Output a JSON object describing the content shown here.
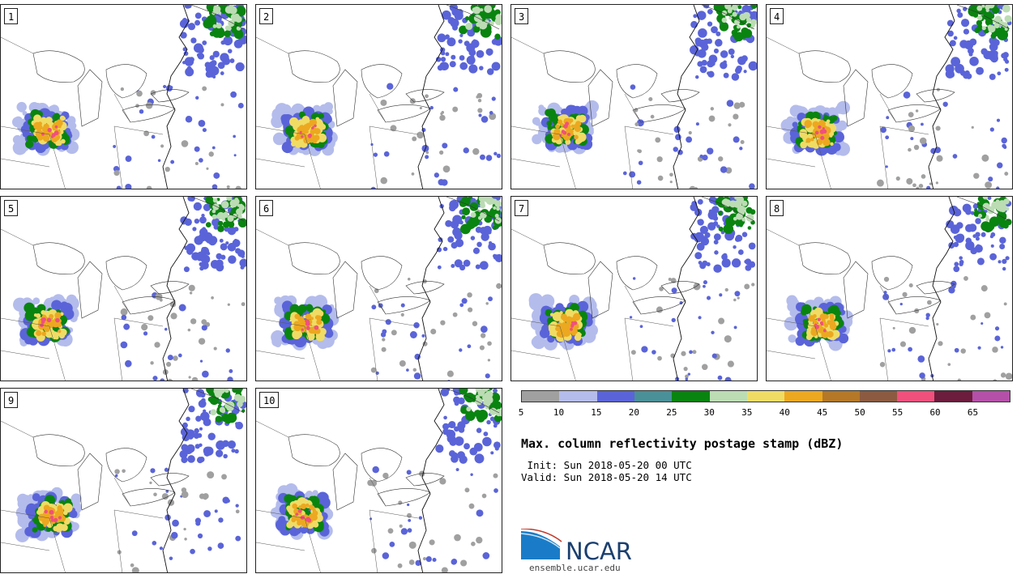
{
  "title": "Max. column reflectivity postage stamp (dBZ)",
  "init": " Init: Sun 2018-05-20 00 UTC",
  "valid": "Valid: Sun 2018-05-20 14 UTC",
  "logo": "NCAR",
  "url": "ensemble.ucar.edu",
  "members": [
    "1",
    "2",
    "3",
    "4",
    "5",
    "6",
    "7",
    "8",
    "9",
    "10"
  ],
  "colorbar": {
    "ticks": [
      "5",
      "10",
      "15",
      "20",
      "25",
      "30",
      "35",
      "40",
      "45",
      "50",
      "55",
      "60",
      "65"
    ],
    "colors": [
      "#a0a0a0",
      "#b4bcec",
      "#5a64d8",
      "#4a9098",
      "#0a8410",
      "#bcdcb4",
      "#f0dc64",
      "#eca820",
      "#b47828",
      "#8c5a40",
      "#f0507c",
      "#6c1c3c",
      "#b450a8"
    ]
  },
  "members_fields": [
    {
      "storm": [
        50,
        70
      ],
      "ne": 1.0
    },
    {
      "storm": [
        55,
        70
      ],
      "ne": 0.8
    },
    {
      "storm": [
        60,
        68
      ],
      "ne": 0.9
    },
    {
      "storm": [
        55,
        72
      ],
      "ne": 0.9
    },
    {
      "storm": [
        50,
        72
      ],
      "ne": 1.0
    },
    {
      "storm": [
        55,
        72
      ],
      "ne": 0.8
    },
    {
      "storm": [
        60,
        72
      ],
      "ne": 0.9
    },
    {
      "storm": [
        60,
        72
      ],
      "ne": 0.8
    },
    {
      "storm": [
        55,
        72
      ],
      "ne": 0.9
    },
    {
      "storm": [
        50,
        70
      ],
      "ne": 0.8
    }
  ]
}
